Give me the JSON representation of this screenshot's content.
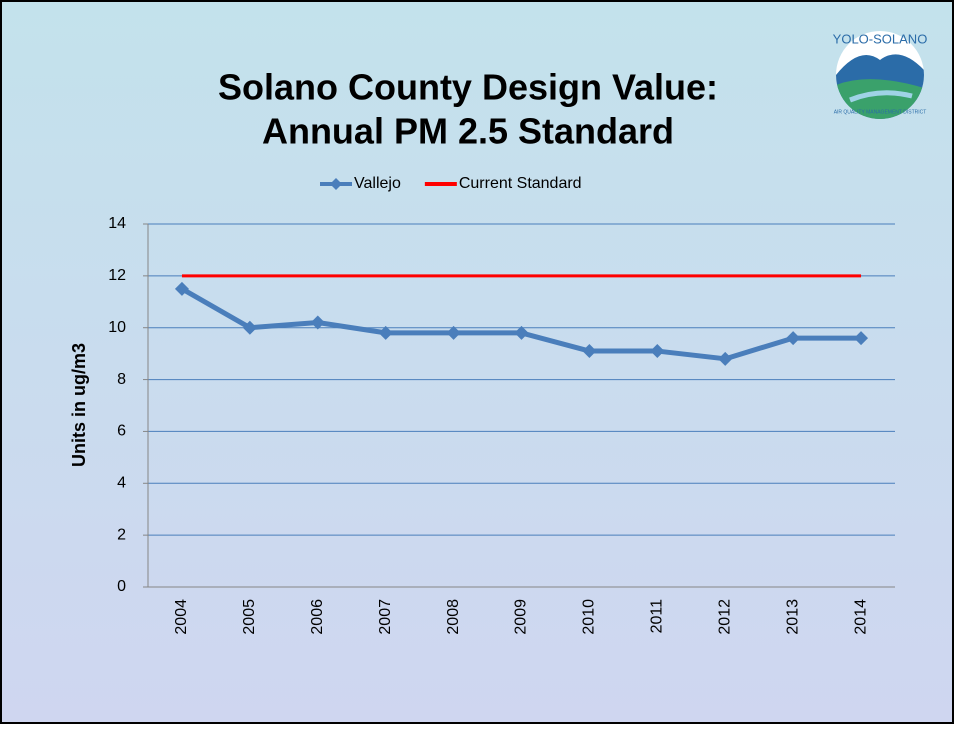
{
  "logo": {
    "top": "YOLO-SOLANO",
    "bottom": "AIR QUALITY MANAGEMENT DISTRICT"
  },
  "chart_data": {
    "type": "line",
    "title": [
      "Solano County Design Value:",
      "Annual PM 2.5 Standard"
    ],
    "y_label": "Units in ug/m3",
    "categories": [
      "2004",
      "2005",
      "2006",
      "2007",
      "2008",
      "2009",
      "2010",
      "2011",
      "2012",
      "2013",
      "2014"
    ],
    "series": [
      {
        "name": "Vallejo",
        "color": "#4a7ebb",
        "marker": "diamond",
        "values": [
          11.5,
          10.0,
          10.2,
          9.8,
          9.8,
          9.8,
          9.1,
          9.1,
          8.8,
          9.6,
          9.6
        ]
      },
      {
        "name": "Current Standard",
        "color": "#ff0000",
        "marker": "none",
        "values": [
          12,
          12,
          12,
          12,
          12,
          12,
          12,
          12,
          12,
          12,
          12
        ]
      }
    ],
    "ylim": [
      0,
      14
    ],
    "yticks": [
      0,
      2,
      4,
      6,
      8,
      10,
      12,
      14
    ],
    "grid": true,
    "legend": "top"
  }
}
